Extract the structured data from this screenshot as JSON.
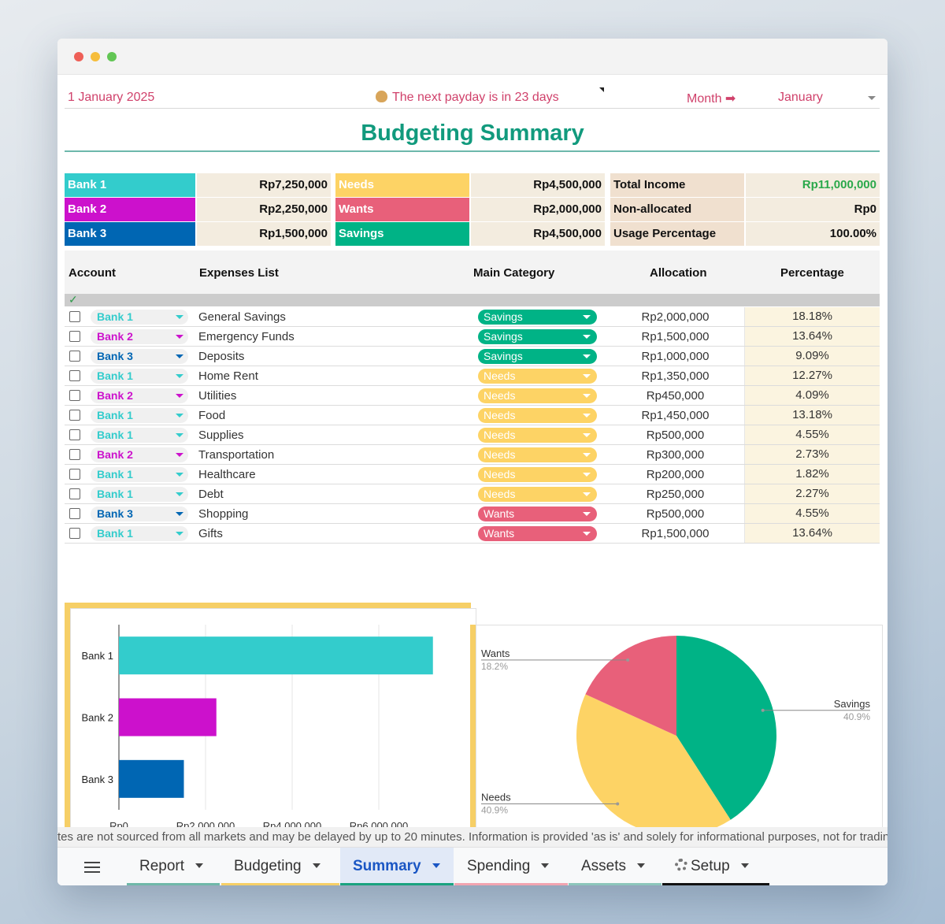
{
  "header": {
    "date": "1 January 2025",
    "payday_text": "The next payday is in 23 days",
    "month_label": "Month ➡",
    "month_value": "January"
  },
  "title": "Budgeting Summary",
  "colors": {
    "bank1": "#33cccc",
    "bank2": "#cc11cc",
    "bank3": "#0066b3",
    "needs": "#fdd365",
    "wants": "#e8607a",
    "savings": "#00b386",
    "accent": "#d0416b"
  },
  "summary": {
    "banks": [
      {
        "label": "Bank 1",
        "value": "Rp7,250,000"
      },
      {
        "label": "Bank 2",
        "value": "Rp2,250,000"
      },
      {
        "label": "Bank 3",
        "value": "Rp1,500,000"
      }
    ],
    "categories": [
      {
        "label": "Needs",
        "value": "Rp4,500,000"
      },
      {
        "label": "Wants",
        "value": "Rp2,000,000"
      },
      {
        "label": "Savings",
        "value": "Rp4,500,000"
      }
    ],
    "totals": [
      {
        "label": "Total Income",
        "value": "Rp11,000,000"
      },
      {
        "label": "Non-allocated",
        "value": "Rp0"
      },
      {
        "label": "Usage Percentage",
        "value": "100.00%"
      }
    ]
  },
  "table": {
    "headers": [
      "Account",
      "Expenses List",
      "Main Category",
      "Allocation",
      "Percentage"
    ],
    "check_mark": "✓",
    "rows": [
      {
        "account": "Bank 1",
        "expense": "General Savings",
        "category": "Savings",
        "allocation": "Rp2,000,000",
        "percentage": "18.18%"
      },
      {
        "account": "Bank 2",
        "expense": "Emergency Funds",
        "category": "Savings",
        "allocation": "Rp1,500,000",
        "percentage": "13.64%"
      },
      {
        "account": "Bank 3",
        "expense": "Deposits",
        "category": "Savings",
        "allocation": "Rp1,000,000",
        "percentage": "9.09%"
      },
      {
        "account": "Bank 1",
        "expense": "Home Rent",
        "category": "Needs",
        "allocation": "Rp1,350,000",
        "percentage": "12.27%"
      },
      {
        "account": "Bank 2",
        "expense": "Utilities",
        "category": "Needs",
        "allocation": "Rp450,000",
        "percentage": "4.09%"
      },
      {
        "account": "Bank 1",
        "expense": "Food",
        "category": "Needs",
        "allocation": "Rp1,450,000",
        "percentage": "13.18%"
      },
      {
        "account": "Bank 1",
        "expense": "Supplies",
        "category": "Needs",
        "allocation": "Rp500,000",
        "percentage": "4.55%"
      },
      {
        "account": "Bank 2",
        "expense": "Transportation",
        "category": "Needs",
        "allocation": "Rp300,000",
        "percentage": "2.73%"
      },
      {
        "account": "Bank 1",
        "expense": "Healthcare",
        "category": "Needs",
        "allocation": "Rp200,000",
        "percentage": "1.82%"
      },
      {
        "account": "Bank 1",
        "expense": "Debt",
        "category": "Needs",
        "allocation": "Rp250,000",
        "percentage": "2.27%"
      },
      {
        "account": "Bank 3",
        "expense": "Shopping",
        "category": "Wants",
        "allocation": "Rp500,000",
        "percentage": "4.55%"
      },
      {
        "account": "Bank 1",
        "expense": "Gifts",
        "category": "Wants",
        "allocation": "Rp1,500,000",
        "percentage": "13.64%"
      }
    ]
  },
  "chart_data": [
    {
      "type": "bar",
      "orientation": "horizontal",
      "categories": [
        "Bank 1",
        "Bank 2",
        "Bank 3"
      ],
      "values": [
        7250000,
        2250000,
        1500000
      ],
      "xlim": [
        0,
        8000000
      ],
      "xticks": [
        0,
        2000000,
        4000000,
        6000000
      ],
      "xtick_labels": [
        "Rp0",
        "Rp2,000,000",
        "Rp4,000,000",
        "Rp6,000,000"
      ],
      "colors": [
        "#33cccc",
        "#cc11cc",
        "#0066b3"
      ]
    },
    {
      "type": "pie",
      "labels": [
        "Savings",
        "Needs",
        "Wants"
      ],
      "values": [
        40.9,
        40.9,
        18.2
      ],
      "value_labels": [
        "40.9%",
        "40.9%",
        "18.2%"
      ],
      "colors": [
        "#00b386",
        "#fdd365",
        "#e8607a"
      ]
    }
  ],
  "ticker_text": "tes are not sourced from all markets and may be delayed by up to 20 minutes. Information is provided 'as is' and solely for informational purposes, not for trading p",
  "tabs": [
    {
      "label": "Report",
      "color": "#6fb8a9"
    },
    {
      "label": "Budgeting",
      "color": "#f6cf66"
    },
    {
      "label": "Summary",
      "color": "#1aa37f"
    },
    {
      "label": "Spending",
      "color": "#f2a4b0"
    },
    {
      "label": "Assets",
      "color": "#8cc6bb"
    },
    {
      "label": "Setup",
      "color": "#111111"
    }
  ]
}
